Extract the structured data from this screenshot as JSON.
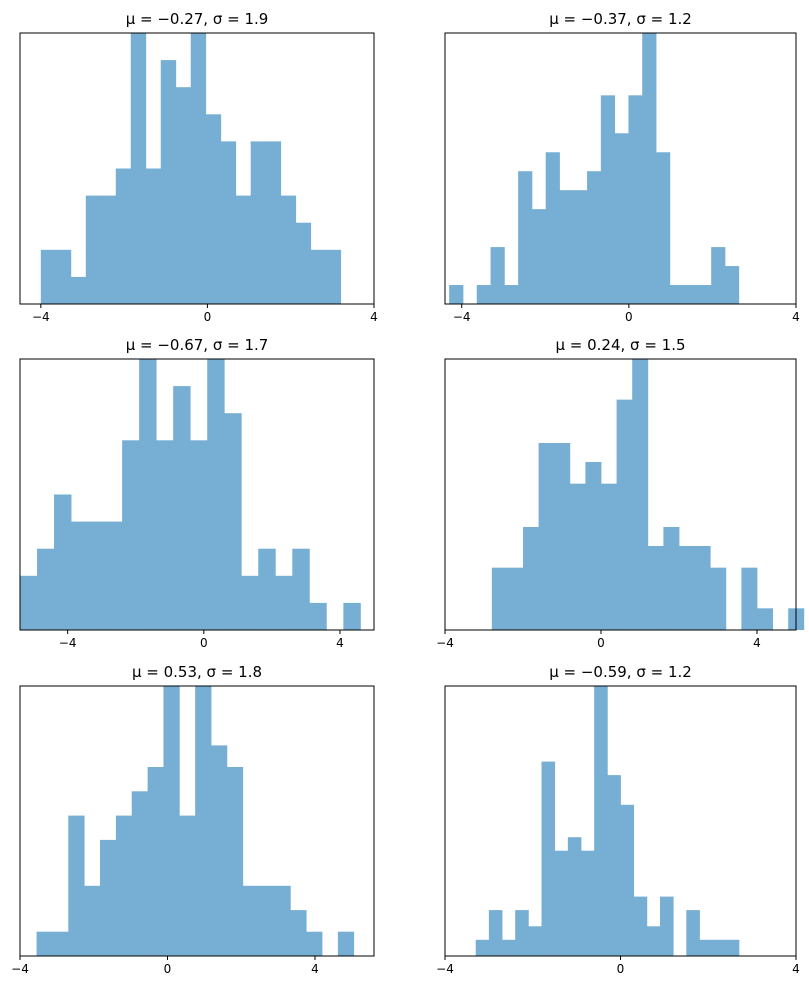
{
  "chart_data": [
    {
      "type": "histogram",
      "title": "μ = −0.27,    σ = 1.9",
      "xlim": [
        -4.5,
        4
      ],
      "ylim": [
        0,
        10
      ],
      "xticks": [
        -4,
        0,
        4
      ],
      "xtick_labels": [
        "−4",
        "0",
        "4"
      ],
      "show_yticks": false,
      "color": "#77aed3",
      "bins": [
        {
          "x0": -4.0,
          "x1": -3.64,
          "count": 2
        },
        {
          "x0": -3.64,
          "x1": -3.28,
          "count": 2
        },
        {
          "x0": -3.28,
          "x1": -2.92,
          "count": 1
        },
        {
          "x0": -2.92,
          "x1": -2.56,
          "count": 4
        },
        {
          "x0": -2.56,
          "x1": -2.2,
          "count": 4
        },
        {
          "x0": -2.2,
          "x1": -1.84,
          "count": 5
        },
        {
          "x0": -1.84,
          "x1": -1.48,
          "count": 10
        },
        {
          "x0": -1.48,
          "x1": -1.12,
          "count": 5
        },
        {
          "x0": -1.12,
          "x1": -0.76,
          "count": 9
        },
        {
          "x0": -0.76,
          "x1": -0.4,
          "count": 8
        },
        {
          "x0": -0.4,
          "x1": -0.04,
          "count": 10
        },
        {
          "x0": -0.04,
          "x1": 0.32,
          "count": 7
        },
        {
          "x0": 0.32,
          "x1": 0.68,
          "count": 6
        },
        {
          "x0": 0.68,
          "x1": 1.04,
          "count": 4
        },
        {
          "x0": 1.04,
          "x1": 1.4,
          "count": 6
        },
        {
          "x0": 1.4,
          "x1": 1.76,
          "count": 6
        },
        {
          "x0": 1.76,
          "x1": 2.12,
          "count": 4
        },
        {
          "x0": 2.12,
          "x1": 2.48,
          "count": 3
        },
        {
          "x0": 2.48,
          "x1": 2.84,
          "count": 2
        },
        {
          "x0": 2.84,
          "x1": 3.2,
          "count": 2
        }
      ]
    },
    {
      "type": "histogram",
      "title": "μ = −0.37,    σ = 1.2",
      "xlim": [
        -4.4,
        4
      ],
      "ylim": [
        0,
        10
      ],
      "xticks": [
        -4,
        0,
        4
      ],
      "xtick_labels": [
        "−4",
        "0",
        "4"
      ],
      "show_yticks": false,
      "color": "#77aed3",
      "bins": [
        {
          "x0": -4.3,
          "x1": -3.97,
          "count": 0.7
        },
        {
          "x0": -3.97,
          "x1": -3.64,
          "count": 0
        },
        {
          "x0": -3.64,
          "x1": -3.31,
          "count": 0.7
        },
        {
          "x0": -3.31,
          "x1": -2.98,
          "count": 2.1
        },
        {
          "x0": -2.98,
          "x1": -2.65,
          "count": 0.7
        },
        {
          "x0": -2.65,
          "x1": -2.32,
          "count": 4.9
        },
        {
          "x0": -2.32,
          "x1": -1.99,
          "count": 3.5
        },
        {
          "x0": -1.99,
          "x1": -1.66,
          "count": 5.6
        },
        {
          "x0": -1.66,
          "x1": -1.33,
          "count": 4.2
        },
        {
          "x0": -1.33,
          "x1": -1.0,
          "count": 4.2
        },
        {
          "x0": -1.0,
          "x1": -0.67,
          "count": 4.9
        },
        {
          "x0": -0.67,
          "x1": -0.34,
          "count": 7.7
        },
        {
          "x0": -0.34,
          "x1": -0.01,
          "count": 6.3
        },
        {
          "x0": -0.01,
          "x1": 0.32,
          "count": 7.7
        },
        {
          "x0": 0.32,
          "x1": 0.65,
          "count": 10
        },
        {
          "x0": 0.65,
          "x1": 0.98,
          "count": 5.6
        },
        {
          "x0": 0.98,
          "x1": 1.31,
          "count": 0.7
        },
        {
          "x0": 1.31,
          "x1": 1.64,
          "count": 0.7
        },
        {
          "x0": 1.64,
          "x1": 1.97,
          "count": 0.7
        },
        {
          "x0": 1.97,
          "x1": 2.3,
          "count": 2.1
        },
        {
          "x0": 2.3,
          "x1": 2.63,
          "count": 1.4
        }
      ]
    },
    {
      "type": "histogram",
      "title": "μ = −0.67,    σ = 1.7",
      "xlim": [
        -5.4,
        5.0
      ],
      "ylim": [
        0,
        10
      ],
      "xticks": [
        -4,
        0,
        4
      ],
      "xtick_labels": [
        "−4",
        "0",
        "4"
      ],
      "show_yticks": false,
      "color": "#77aed3",
      "bins": [
        {
          "x0": -5.4,
          "x1": -4.9,
          "count": 2
        },
        {
          "x0": -4.9,
          "x1": -4.4,
          "count": 3
        },
        {
          "x0": -4.4,
          "x1": -3.9,
          "count": 5
        },
        {
          "x0": -3.9,
          "x1": -3.4,
          "count": 4
        },
        {
          "x0": -3.4,
          "x1": -2.9,
          "count": 4
        },
        {
          "x0": -2.9,
          "x1": -2.4,
          "count": 4
        },
        {
          "x0": -2.4,
          "x1": -1.9,
          "count": 7
        },
        {
          "x0": -1.9,
          "x1": -1.4,
          "count": 10
        },
        {
          "x0": -1.4,
          "x1": -0.9,
          "count": 7
        },
        {
          "x0": -0.9,
          "x1": -0.4,
          "count": 9
        },
        {
          "x0": -0.4,
          "x1": 0.1,
          "count": 7
        },
        {
          "x0": 0.1,
          "x1": 0.6,
          "count": 10
        },
        {
          "x0": 0.6,
          "x1": 1.1,
          "count": 8
        },
        {
          "x0": 1.1,
          "x1": 1.6,
          "count": 2
        },
        {
          "x0": 1.6,
          "x1": 2.1,
          "count": 3
        },
        {
          "x0": 2.1,
          "x1": 2.6,
          "count": 2
        },
        {
          "x0": 2.6,
          "x1": 3.1,
          "count": 3
        },
        {
          "x0": 3.1,
          "x1": 3.6,
          "count": 1
        },
        {
          "x0": 3.6,
          "x1": 4.1,
          "count": 0
        },
        {
          "x0": 4.1,
          "x1": 4.6,
          "count": 1
        }
      ]
    },
    {
      "type": "histogram",
      "title": "μ = 0.24,    σ = 1.5",
      "xlim": [
        -4,
        5.0
      ],
      "ylim": [
        0,
        10
      ],
      "xticks": [
        -4,
        0,
        4
      ],
      "xtick_labels": [
        "−4",
        "0",
        "4"
      ],
      "show_yticks": false,
      "color": "#77aed3",
      "bins": [
        {
          "x0": -2.8,
          "x1": -2.4,
          "count": 2.3
        },
        {
          "x0": -2.4,
          "x1": -2.0,
          "count": 2.3
        },
        {
          "x0": -2.0,
          "x1": -1.6,
          "count": 3.8
        },
        {
          "x0": -1.6,
          "x1": -1.2,
          "count": 6.9
        },
        {
          "x0": -1.2,
          "x1": -0.8,
          "count": 6.9
        },
        {
          "x0": -0.8,
          "x1": -0.4,
          "count": 5.4
        },
        {
          "x0": -0.4,
          "x1": 0.0,
          "count": 6.2
        },
        {
          "x0": 0.0,
          "x1": 0.4,
          "count": 5.4
        },
        {
          "x0": 0.4,
          "x1": 0.8,
          "count": 8.5
        },
        {
          "x0": 0.8,
          "x1": 1.2,
          "count": 10
        },
        {
          "x0": 1.2,
          "x1": 1.6,
          "count": 3.1
        },
        {
          "x0": 1.6,
          "x1": 2.0,
          "count": 3.8
        },
        {
          "x0": 2.0,
          "x1": 2.4,
          "count": 3.1
        },
        {
          "x0": 2.4,
          "x1": 2.8,
          "count": 3.1
        },
        {
          "x0": 2.8,
          "x1": 3.2,
          "count": 2.3
        },
        {
          "x0": 3.2,
          "x1": 3.6,
          "count": 0
        },
        {
          "x0": 3.6,
          "x1": 4.0,
          "count": 2.3
        },
        {
          "x0": 4.0,
          "x1": 4.4,
          "count": 0.8
        },
        {
          "x0": 4.4,
          "x1": 4.8,
          "count": 0
        },
        {
          "x0": 4.8,
          "x1": 5.2,
          "count": 0.8
        }
      ]
    },
    {
      "type": "histogram",
      "title": "μ = 0.53,    σ = 1.8",
      "xlim": [
        -4,
        5.6
      ],
      "ylim": [
        0,
        10
      ],
      "xticks": [
        -4,
        0,
        4
      ],
      "xtick_labels": [
        "−4",
        "0",
        "4"
      ],
      "show_yticks": false,
      "color": "#77aed3",
      "bins": [
        {
          "x0": -3.55,
          "x1": -3.12,
          "count": 0.9
        },
        {
          "x0": -3.12,
          "x1": -2.69,
          "count": 0.9
        },
        {
          "x0": -2.69,
          "x1": -2.26,
          "count": 5.2
        },
        {
          "x0": -2.26,
          "x1": -1.83,
          "count": 2.6
        },
        {
          "x0": -1.83,
          "x1": -1.4,
          "count": 4.3
        },
        {
          "x0": -1.4,
          "x1": -0.97,
          "count": 5.2
        },
        {
          "x0": -0.97,
          "x1": -0.54,
          "count": 6.1
        },
        {
          "x0": -0.54,
          "x1": -0.11,
          "count": 7.0
        },
        {
          "x0": -0.11,
          "x1": 0.32,
          "count": 10
        },
        {
          "x0": 0.32,
          "x1": 0.75,
          "count": 5.2
        },
        {
          "x0": 0.75,
          "x1": 1.18,
          "count": 10
        },
        {
          "x0": 1.18,
          "x1": 1.61,
          "count": 7.8
        },
        {
          "x0": 1.61,
          "x1": 2.04,
          "count": 7.0
        },
        {
          "x0": 2.04,
          "x1": 2.47,
          "count": 2.6
        },
        {
          "x0": 2.47,
          "x1": 2.9,
          "count": 2.6
        },
        {
          "x0": 2.9,
          "x1": 3.33,
          "count": 2.6
        },
        {
          "x0": 3.33,
          "x1": 3.76,
          "count": 1.7
        },
        {
          "x0": 3.76,
          "x1": 4.19,
          "count": 0.9
        },
        {
          "x0": 4.19,
          "x1": 4.62,
          "count": 0
        },
        {
          "x0": 4.62,
          "x1": 5.05,
          "count": 0.9
        }
      ]
    },
    {
      "type": "histogram",
      "title": "μ = −0.59,    σ = 1.2",
      "xlim": [
        -4,
        4
      ],
      "ylim": [
        0,
        10
      ],
      "xticks": [
        -4,
        0,
        4
      ],
      "xtick_labels": [
        "−4",
        "0",
        "4"
      ],
      "show_yticks": false,
      "color": "#77aed3",
      "bins": [
        {
          "x0": -3.3,
          "x1": -3.0,
          "count": 0.6
        },
        {
          "x0": -3.0,
          "x1": -2.7,
          "count": 1.7
        },
        {
          "x0": -2.7,
          "x1": -2.4,
          "count": 0.6
        },
        {
          "x0": -2.4,
          "x1": -2.1,
          "count": 1.7
        },
        {
          "x0": -2.1,
          "x1": -1.8,
          "count": 1.1
        },
        {
          "x0": -1.8,
          "x1": -1.5,
          "count": 7.2
        },
        {
          "x0": -1.5,
          "x1": -1.2,
          "count": 3.9
        },
        {
          "x0": -1.2,
          "x1": -0.9,
          "count": 4.4
        },
        {
          "x0": -0.9,
          "x1": -0.6,
          "count": 3.9
        },
        {
          "x0": -0.6,
          "x1": -0.3,
          "count": 10
        },
        {
          "x0": -0.3,
          "x1": 0.0,
          "count": 6.7
        },
        {
          "x0": 0.0,
          "x1": 0.3,
          "count": 5.6
        },
        {
          "x0": 0.3,
          "x1": 0.6,
          "count": 2.2
        },
        {
          "x0": 0.6,
          "x1": 0.9,
          "count": 1.1
        },
        {
          "x0": 0.9,
          "x1": 1.2,
          "count": 2.2
        },
        {
          "x0": 1.2,
          "x1": 1.5,
          "count": 0
        },
        {
          "x0": 1.5,
          "x1": 1.8,
          "count": 1.7
        },
        {
          "x0": 1.8,
          "x1": 2.1,
          "count": 0.6
        },
        {
          "x0": 2.1,
          "x1": 2.4,
          "count": 0.6
        },
        {
          "x0": 2.4,
          "x1": 2.7,
          "count": 0.6
        }
      ]
    }
  ]
}
